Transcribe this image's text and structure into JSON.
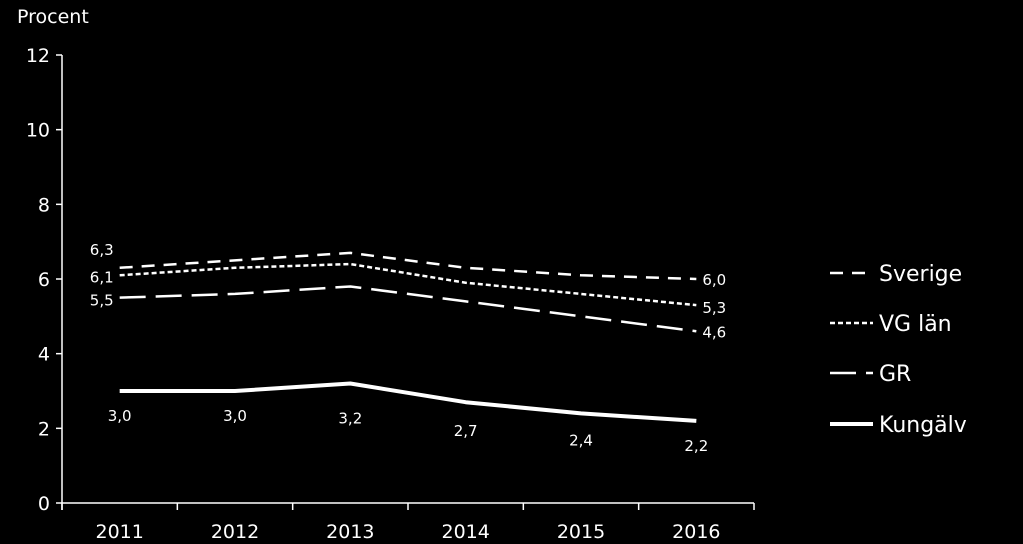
{
  "chart_data": {
    "type": "line",
    "title": "",
    "ylabel": "Procent",
    "xlabel": "",
    "ylim": [
      0,
      12
    ],
    "yticks": [
      "0",
      "2",
      "4",
      "6",
      "8",
      "10",
      "12"
    ],
    "categories": [
      "2011",
      "2012",
      "2013",
      "2014",
      "2015",
      "2016"
    ],
    "grid": false,
    "legend_position": "right",
    "series": [
      {
        "name": "Sverige",
        "style": "dashed",
        "color": "#ffffff",
        "values": [
          6.3,
          6.5,
          6.7,
          6.3,
          6.1,
          6.0
        ],
        "labels": [
          "6,3",
          "",
          "",
          "",
          "",
          "6,0"
        ]
      },
      {
        "name": "VG län",
        "style": "dotted",
        "color": "#ffffff",
        "values": [
          6.1,
          6.3,
          6.4,
          5.9,
          5.6,
          5.3
        ],
        "labels": [
          "6,1",
          "",
          "",
          "",
          "",
          "5,3"
        ]
      },
      {
        "name": "GR",
        "style": "longdash",
        "color": "#ffffff",
        "values": [
          5.5,
          5.6,
          5.8,
          5.4,
          5.0,
          4.6
        ],
        "labels": [
          "5,5",
          "",
          "",
          "",
          "",
          "4,6"
        ]
      },
      {
        "name": "Kungälv",
        "style": "solid",
        "color": "#ffffff",
        "values": [
          3.0,
          3.0,
          3.2,
          2.7,
          2.4,
          2.2
        ],
        "labels": [
          "3,0",
          "3,0",
          "3,2",
          "2,7",
          "2,4",
          "2,2"
        ]
      }
    ]
  }
}
